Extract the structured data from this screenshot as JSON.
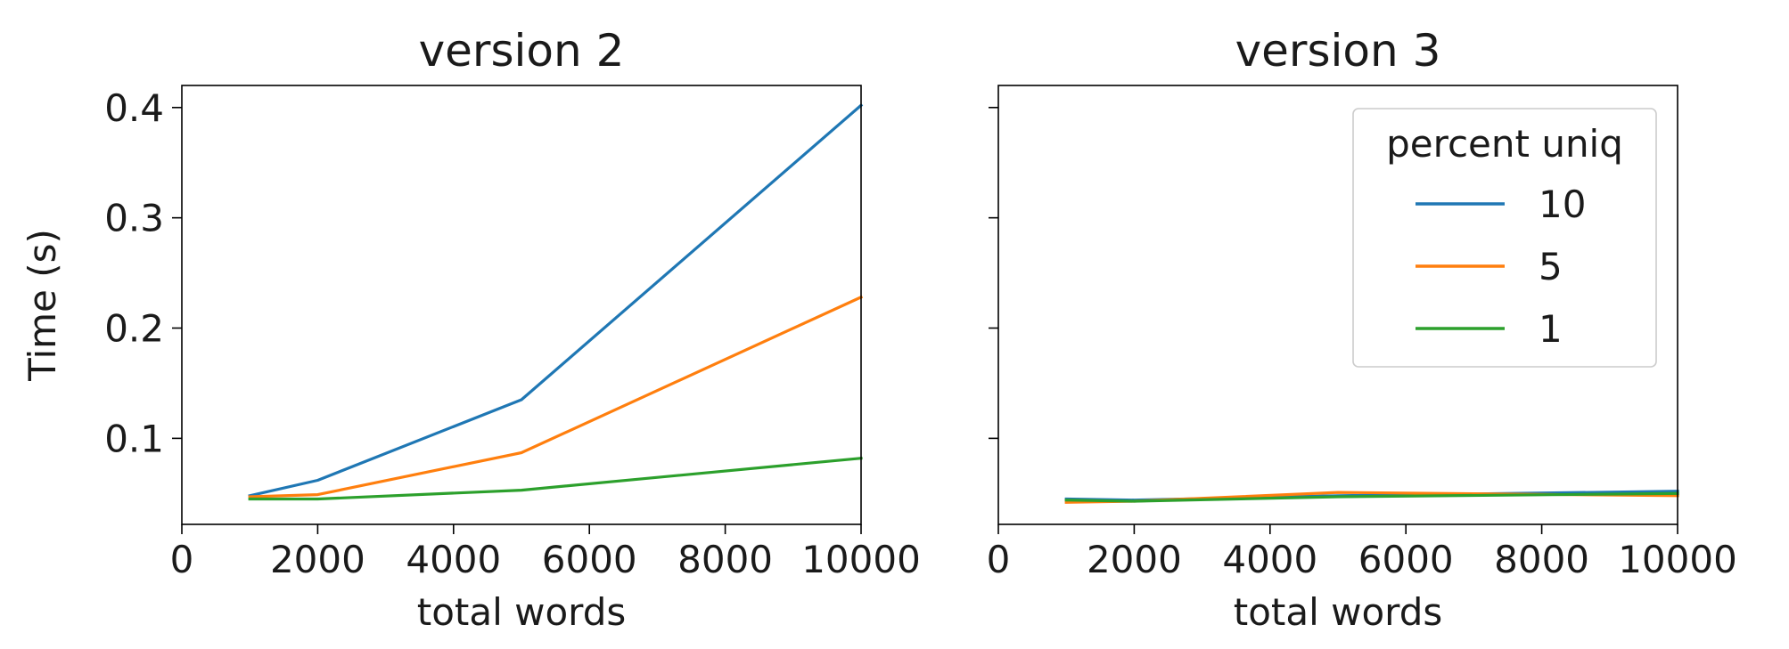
{
  "chart_data": [
    {
      "type": "line",
      "title": "version 2",
      "xlabel": "total words",
      "ylabel": "Time (s)",
      "xlim": [
        0,
        10000
      ],
      "ylim": [
        0.022,
        0.42
      ],
      "xticks": [
        0,
        2000,
        4000,
        6000,
        8000,
        10000
      ],
      "xtick_labels": [
        "0",
        "2000",
        "4000",
        "6000",
        "8000",
        "10000"
      ],
      "yticks": [
        0.1,
        0.2,
        0.3,
        0.4
      ],
      "ytick_labels": [
        "0.1",
        "0.2",
        "0.3",
        "0.4"
      ],
      "grid": false,
      "x": [
        1000,
        2000,
        5000,
        10000
      ],
      "series": [
        {
          "name": "10",
          "color": "#1f77b4",
          "values": [
            0.048,
            0.062,
            0.135,
            0.402
          ]
        },
        {
          "name": "5",
          "color": "#ff7f0e",
          "values": [
            0.047,
            0.049,
            0.087,
            0.228
          ]
        },
        {
          "name": "1",
          "color": "#2ca02c",
          "values": [
            0.045,
            0.045,
            0.053,
            0.082
          ]
        }
      ]
    },
    {
      "type": "line",
      "title": "version 3",
      "xlabel": "total words",
      "ylabel": "",
      "xlim": [
        0,
        10000
      ],
      "ylim": [
        0.022,
        0.42
      ],
      "xticks": [
        0,
        2000,
        4000,
        6000,
        8000,
        10000
      ],
      "xtick_labels": [
        "0",
        "2000",
        "4000",
        "6000",
        "8000",
        "10000"
      ],
      "yticks": [
        0.1,
        0.2,
        0.3,
        0.4
      ],
      "ytick_labels": [],
      "grid": false,
      "x": [
        1000,
        2000,
        5000,
        10000
      ],
      "series": [
        {
          "name": "10",
          "color": "#1f77b4",
          "values": [
            0.045,
            0.044,
            0.048,
            0.052
          ]
        },
        {
          "name": "5",
          "color": "#ff7f0e",
          "values": [
            0.042,
            0.043,
            0.051,
            0.048
          ]
        },
        {
          "name": "1",
          "color": "#2ca02c",
          "values": [
            0.044,
            0.043,
            0.047,
            0.05
          ]
        }
      ],
      "legend": {
        "title": "percent uniq",
        "placement": "top-right",
        "entries": [
          "10",
          "5",
          "1"
        ]
      }
    }
  ]
}
